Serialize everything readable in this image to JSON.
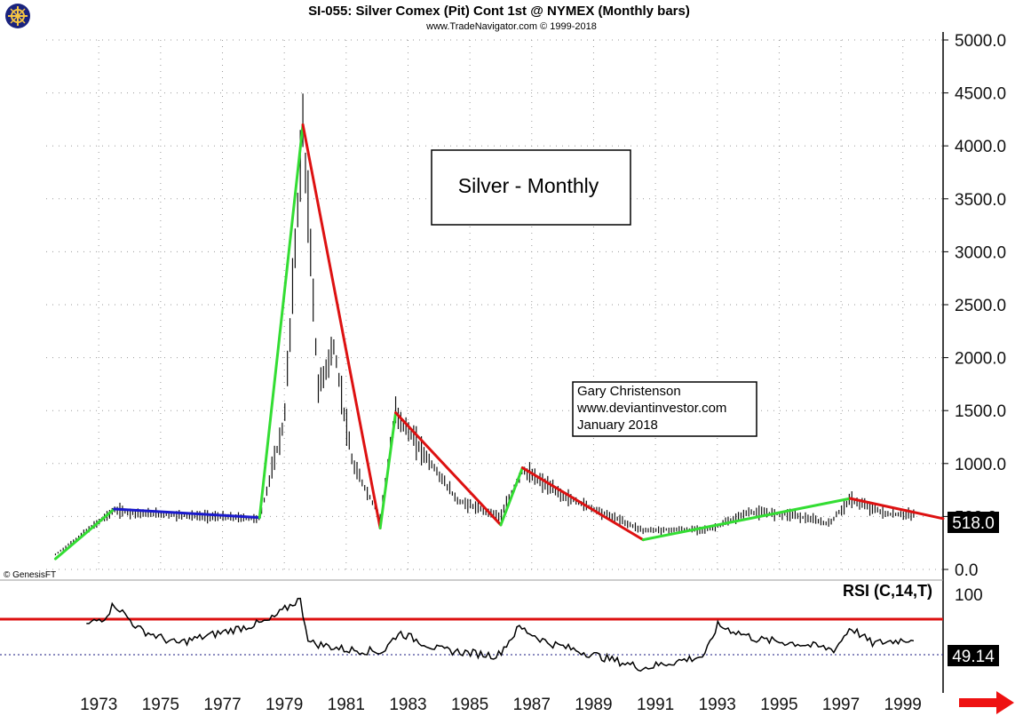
{
  "header": {
    "title": "SI-055:  Silver Comex (Pit) Cont 1st @ NYMEX  (Monthly bars)",
    "subtitle": "www.TradeNavigator.com © 1999-2018"
  },
  "logo": {
    "icon": "ship-wheel-icon"
  },
  "copyright": "© GenesisFT",
  "label_box": {
    "text": "Silver - Monthly"
  },
  "author_box": {
    "line1": "Gary Christenson",
    "line2": "www.deviantinvestor.com",
    "line3": "January 2018"
  },
  "colors": {
    "up_trend": "#33dd33",
    "down_trend": "#dd1111",
    "flat_trend": "#1a1acc",
    "badge": "#000000",
    "arrow": "#ee1111"
  },
  "chart_data": [
    {
      "type": "bar",
      "title": "SI-055:  Silver Comex (Pit) Cont 1st @ NYMEX  (Monthly bars)",
      "ylim": [
        0,
        5000
      ],
      "yticks": [
        "5000.0",
        "4500.0",
        "4000.0",
        "3500.0",
        "3000.0",
        "2500.0",
        "2000.0",
        "1500.0",
        "1000.0",
        "500.0",
        "0.0"
      ],
      "xlim": [
        1971.3,
        2000.3
      ],
      "xticks": [
        "1973",
        "1975",
        "1977",
        "1979",
        "1981",
        "1983",
        "1985",
        "1987",
        "1989",
        "1991",
        "1993",
        "1995",
        "1997",
        "1999"
      ],
      "last_value": "518.0",
      "key_points": [
        {
          "x": 1971.6,
          "y": 140
        },
        {
          "x": 1973.5,
          "y": 560
        },
        {
          "x": 1974.2,
          "y": 530
        },
        {
          "x": 1978.2,
          "y": 480
        },
        {
          "x": 1979.0,
          "y": 1400
        },
        {
          "x": 1979.6,
          "y": 4200
        },
        {
          "x": 1980.1,
          "y": 1700
        },
        {
          "x": 1980.6,
          "y": 2100
        },
        {
          "x": 1981.2,
          "y": 1000
        },
        {
          "x": 1982.1,
          "y": 490
        },
        {
          "x": 1982.6,
          "y": 1480
        },
        {
          "x": 1983.5,
          "y": 1100
        },
        {
          "x": 1984.6,
          "y": 650
        },
        {
          "x": 1986.0,
          "y": 500
        },
        {
          "x": 1986.7,
          "y": 940
        },
        {
          "x": 1988.0,
          "y": 700
        },
        {
          "x": 1990.2,
          "y": 420
        },
        {
          "x": 1990.6,
          "y": 370
        },
        {
          "x": 1992.8,
          "y": 380
        },
        {
          "x": 1994.0,
          "y": 540
        },
        {
          "x": 1995.4,
          "y": 520
        },
        {
          "x": 1996.6,
          "y": 430
        },
        {
          "x": 1997.3,
          "y": 660
        },
        {
          "x": 1998.5,
          "y": 520
        },
        {
          "x": 1999.4,
          "y": 518
        }
      ],
      "trend_lines": [
        {
          "color": "green",
          "x1": 1971.6,
          "y1": 100,
          "x2": 1973.5,
          "y2": 570
        },
        {
          "color": "blue",
          "x1": 1973.5,
          "y1": 570,
          "x2": 1978.2,
          "y2": 490
        },
        {
          "color": "green",
          "x1": 1978.2,
          "y1": 490,
          "x2": 1979.6,
          "y2": 4200
        },
        {
          "color": "red",
          "x1": 1979.6,
          "y1": 4200,
          "x2": 1982.1,
          "y2": 390
        },
        {
          "color": "green",
          "x1": 1982.1,
          "y1": 390,
          "x2": 1982.6,
          "y2": 1480
        },
        {
          "color": "red",
          "x1": 1982.6,
          "y1": 1480,
          "x2": 1986.0,
          "y2": 420
        },
        {
          "color": "green",
          "x1": 1986.0,
          "y1": 420,
          "x2": 1986.7,
          "y2": 960
        },
        {
          "color": "red",
          "x1": 1986.7,
          "y1": 960,
          "x2": 1990.6,
          "y2": 280
        },
        {
          "color": "green",
          "x1": 1990.6,
          "y1": 280,
          "x2": 1997.3,
          "y2": 670
        },
        {
          "color": "red",
          "x1": 1997.3,
          "y1": 670,
          "x2": 2000.3,
          "y2": 480
        }
      ]
    },
    {
      "type": "line",
      "title": "RSI (C,14,T)",
      "yticks": [
        "100"
      ],
      "ylim": [
        0,
        100
      ],
      "last_value": "49.14",
      "reference_lines": [
        {
          "value": 73,
          "color": "red"
        },
        {
          "value": 46,
          "color": "navy",
          "style": "dotted"
        }
      ],
      "key_points": [
        {
          "x": 1972.6,
          "y": 62
        },
        {
          "x": 1973.2,
          "y": 70
        },
        {
          "x": 1973.5,
          "y": 83
        },
        {
          "x": 1974.3,
          "y": 58
        },
        {
          "x": 1975.5,
          "y": 44
        },
        {
          "x": 1977.0,
          "y": 55
        },
        {
          "x": 1978.5,
          "y": 66
        },
        {
          "x": 1979.5,
          "y": 88
        },
        {
          "x": 1979.8,
          "y": 45
        },
        {
          "x": 1981.0,
          "y": 38
        },
        {
          "x": 1982.2,
          "y": 36
        },
        {
          "x": 1982.7,
          "y": 55
        },
        {
          "x": 1984.0,
          "y": 38
        },
        {
          "x": 1985.9,
          "y": 32
        },
        {
          "x": 1986.6,
          "y": 60
        },
        {
          "x": 1987.5,
          "y": 45
        },
        {
          "x": 1990.6,
          "y": 20
        },
        {
          "x": 1992.6,
          "y": 32
        },
        {
          "x": 1993.0,
          "y": 62
        },
        {
          "x": 1994.3,
          "y": 48
        },
        {
          "x": 1995.6,
          "y": 44
        },
        {
          "x": 1996.8,
          "y": 38
        },
        {
          "x": 1997.3,
          "y": 60
        },
        {
          "x": 1998.0,
          "y": 44
        },
        {
          "x": 1999.4,
          "y": 49
        }
      ]
    }
  ]
}
